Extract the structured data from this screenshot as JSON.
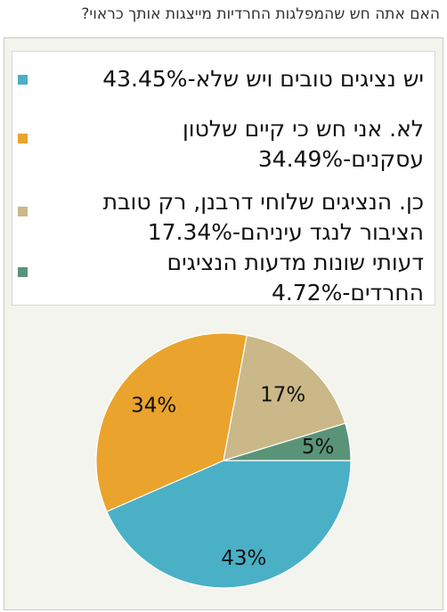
{
  "question": "האם אתה חש שהמפלגות החרדיות מייצגות אותך כראוי?",
  "colors": {
    "s1": "#4ab0c6",
    "s2": "#eaa32c",
    "s3": "#cbb888",
    "s4": "#5a9478"
  },
  "chart_data": {
    "type": "pie",
    "title": "האם אתה חש שהמפלגות החרדיות מייצגות אותך כראוי?",
    "legend_position": "top",
    "series": [
      {
        "name": "יש נציגים טובים ויש שלא-43.45%",
        "value": 43.45,
        "slice_label": "43%",
        "color": "#4ab0c6"
      },
      {
        "name": "לא. אני חש כי קיים שלטון עסקנים-34.49%",
        "value": 34.49,
        "slice_label": "34%",
        "color": "#eaa32c"
      },
      {
        "name": "כן. הנציגים שלוחי דרבנן, רק טובת הציבור לנגד עיניהם-17.34%",
        "value": 17.34,
        "slice_label": "17%",
        "color": "#cbb888"
      },
      {
        "name": "דעותי שונות מדעות הנציגים החרדים-4.72%",
        "value": 4.72,
        "slice_label": "5%",
        "color": "#5a9478"
      }
    ]
  }
}
